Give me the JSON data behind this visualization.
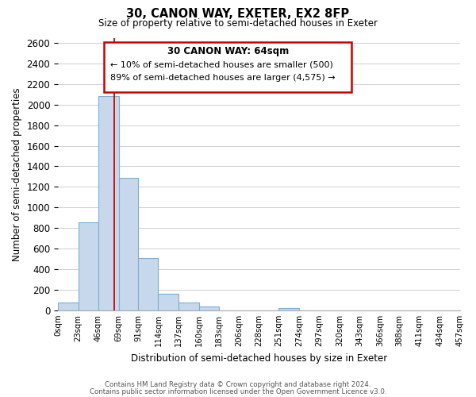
{
  "title": "30, CANON WAY, EXETER, EX2 8FP",
  "subtitle": "Size of property relative to semi-detached houses in Exeter",
  "xlabel": "Distribution of semi-detached houses by size in Exeter",
  "ylabel": "Number of semi-detached properties",
  "bar_color": "#c8d8ec",
  "bar_edge_color": "#7aafd4",
  "vline_x": 64,
  "vline_color": "#cc0000",
  "bins": [
    0,
    23,
    46,
    69,
    91,
    114,
    137,
    160,
    183,
    206,
    228,
    251,
    274,
    297,
    320,
    343,
    366,
    388,
    411,
    434,
    457
  ],
  "bin_labels": [
    "0sqm",
    "23sqm",
    "46sqm",
    "69sqm",
    "91sqm",
    "114sqm",
    "137sqm",
    "160sqm",
    "183sqm",
    "206sqm",
    "228sqm",
    "251sqm",
    "274sqm",
    "297sqm",
    "320sqm",
    "343sqm",
    "366sqm",
    "388sqm",
    "411sqm",
    "434sqm",
    "457sqm"
  ],
  "counts": [
    75,
    855,
    2080,
    1290,
    510,
    160,
    75,
    35,
    0,
    0,
    0,
    25,
    0,
    0,
    0,
    0,
    0,
    0,
    0,
    0
  ],
  "ylim": [
    0,
    2650
  ],
  "yticks": [
    0,
    200,
    400,
    600,
    800,
    1000,
    1200,
    1400,
    1600,
    1800,
    2000,
    2200,
    2400,
    2600
  ],
  "annotation_title": "30 CANON WAY: 64sqm",
  "annotation_line1": "← 10% of semi-detached houses are smaller (500)",
  "annotation_line2": "89% of semi-detached houses are larger (4,575) →",
  "footer_line1": "Contains HM Land Registry data © Crown copyright and database right 2024.",
  "footer_line2": "Contains public sector information licensed under the Open Government Licence v3.0.",
  "background_color": "#ffffff",
  "grid_color": "#d0d0d0"
}
